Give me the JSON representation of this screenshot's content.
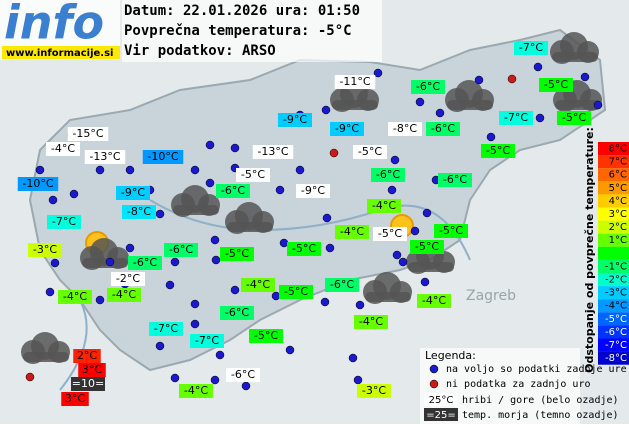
{
  "header": {
    "logo": "info",
    "site": "www.informacije.si",
    "lines": [
      "Datum: 22.01.2026 ura: 01:50",
      "Povprečna temperatura: -5°C",
      "Vir podatkov: ARSO"
    ]
  },
  "map_labels": [
    "Zagreb"
  ],
  "stations": [
    {
      "label": "-7°C",
      "color": "#00ffdd"
    },
    {
      "label": "-5°C",
      "color": "#00ff00"
    },
    {
      "label": "-11°C",
      "color": "#ffffff"
    },
    {
      "label": "-6°C",
      "color": "#00ff66"
    },
    {
      "label": "-9°C",
      "color": "#00ccff"
    },
    {
      "label": "-9°C",
      "color": "#00ccff"
    },
    {
      "label": "-8°C",
      "color": "#ffffff"
    },
    {
      "label": "-6°C",
      "color": "#00ff66"
    },
    {
      "label": "-7°C",
      "color": "#00ffdd"
    },
    {
      "label": "-5°C",
      "color": "#00ff00"
    },
    {
      "label": "-15°C",
      "color": "#ffffff"
    },
    {
      "label": "-4°C",
      "color": "#ffffff"
    },
    {
      "label": "-13°C",
      "color": "#ffffff"
    },
    {
      "label": "-10°C",
      "color": "#0099ff"
    },
    {
      "label": "-13°C",
      "color": "#ffffff"
    },
    {
      "label": "-5°C",
      "color": "#ffffff"
    },
    {
      "label": "-5°C",
      "color": "#00ff00"
    },
    {
      "label": "-10°C",
      "color": "#0099ff"
    },
    {
      "label": "-6°C",
      "color": "#00ff66"
    },
    {
      "label": "-5°C",
      "color": "#ffffff"
    },
    {
      "label": "-6°C",
      "color": "#00ff66"
    },
    {
      "label": "-9°C",
      "color": "#00ccff"
    },
    {
      "label": "-6°C",
      "color": "#00ff66"
    },
    {
      "label": "-9°C",
      "color": "#ffffff"
    },
    {
      "label": "-8°C",
      "color": "#00e5ff"
    },
    {
      "label": "-4°C",
      "color": "#66ff00"
    },
    {
      "label": "-7°C",
      "color": "#00ffdd"
    },
    {
      "label": "-3°C",
      "color": "#ccff00"
    },
    {
      "label": "-6°C",
      "color": "#00ff66"
    },
    {
      "label": "-5°C",
      "color": "#00ff00"
    },
    {
      "label": "-5°C",
      "color": "#00ff00"
    },
    {
      "label": "-4°C",
      "color": "#66ff00"
    },
    {
      "label": "-5°C",
      "color": "#ffffff"
    },
    {
      "label": "-5°C",
      "color": "#00ff00"
    },
    {
      "label": "-5°C",
      "color": "#00ff00"
    },
    {
      "label": "-6°C",
      "color": "#00ff66"
    },
    {
      "label": "-2°C",
      "color": "#ffffff"
    },
    {
      "label": "-4°C",
      "color": "#66ff00"
    },
    {
      "label": "-5°C",
      "color": "#00ff00"
    },
    {
      "label": "-6°C",
      "color": "#00ff66"
    },
    {
      "label": "-4°C",
      "color": "#66ff00"
    },
    {
      "label": "-4°C",
      "color": "#66ff00"
    },
    {
      "label": "-6°C",
      "color": "#00ff66"
    },
    {
      "label": "-4°C",
      "color": "#66ff00"
    },
    {
      "label": "-4°C",
      "color": "#66ff00"
    },
    {
      "label": "-7°C",
      "color": "#00ffdd"
    },
    {
      "label": "-7°C",
      "color": "#00ffdd"
    },
    {
      "label": "-5°C",
      "color": "#00ff00"
    },
    {
      "label": "-6°C",
      "color": "#ffffff"
    },
    {
      "label": "-4°C",
      "color": "#66ff00"
    },
    {
      "label": "-3°C",
      "color": "#ccff00"
    },
    {
      "label": "2°C",
      "color": "#ff2200"
    },
    {
      "label": "3°C",
      "color": "#ff0000"
    },
    {
      "label": "=10=",
      "color": "#333333"
    },
    {
      "label": "3°C",
      "color": "#ff0000"
    }
  ],
  "scale": {
    "title": "Odstopanje od povprečne temperature:",
    "steps": [
      {
        "label": "8°C",
        "color": "#ff0000"
      },
      {
        "label": "7°C",
        "color": "#ff3300"
      },
      {
        "label": "6°C",
        "color": "#ff6600"
      },
      {
        "label": "5°C",
        "color": "#ff9900"
      },
      {
        "label": "4°C",
        "color": "#ffcc00"
      },
      {
        "label": "3°C",
        "color": "#ffff00"
      },
      {
        "label": "2°C",
        "color": "#ccff00"
      },
      {
        "label": "1°C",
        "color": "#66ff00"
      },
      {
        "color": "#00ff00"
      },
      {
        "label": "-1°C",
        "color": "#00ff66"
      },
      {
        "label": "-2°C",
        "color": "#00ffcc"
      },
      {
        "label": "-3°C",
        "color": "#00ccff"
      },
      {
        "label": "-4°C",
        "color": "#0099ff"
      },
      {
        "label": "-5°C",
        "color": "#0066ff"
      },
      {
        "label": "-6°C",
        "color": "#0033ff"
      },
      {
        "label": "-7°C",
        "color": "#0000ff"
      },
      {
        "label": "-8°C",
        "color": "#0000cc"
      }
    ]
  },
  "legend": {
    "title": "Legenda:",
    "items": [
      "na voljo so podatki zadnje ure",
      "ni podatka za zadnjo uro"
    ],
    "mountain": {
      "sample": "25°C",
      "text": "hribi / gore (belo ozadje)"
    },
    "sea": {
      "sample": "=25=",
      "text": "temp. morja (temno ozadje)"
    }
  }
}
